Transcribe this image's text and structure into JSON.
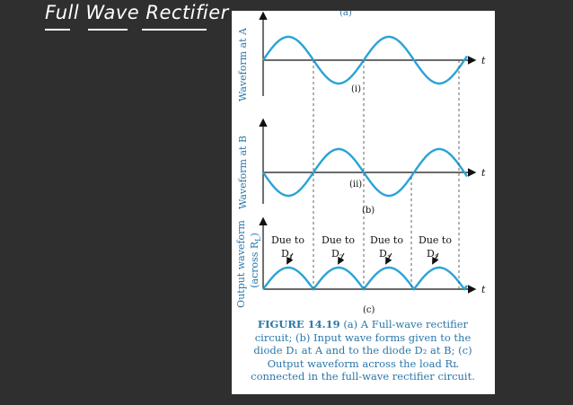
{
  "handwritten_title": "Full Wave Rectifier",
  "figure": {
    "label_a": "(a)",
    "waveform_a_label": "Waveform at A",
    "waveform_b_label": "Waveform at B",
    "output_label_line1": "Output waveform",
    "output_label_line2": "(across R",
    "output_label_sub": "L",
    "output_label_close": ")",
    "axis_t": "t",
    "label_i": "(i)",
    "label_ii": "(ii)",
    "label_b": "(b)",
    "label_c": "(c)",
    "due_to": [
      "Due to",
      "Due to",
      "Due to",
      "Due to"
    ],
    "diode": [
      "D",
      "D",
      "D",
      "D"
    ],
    "diode_sub": [
      "1",
      "2",
      "1",
      "2"
    ]
  },
  "caption": {
    "bold": "FIGURE 14.19",
    "text": "(a) A Full-wave rectifier circuit; (b) Input wave forms given to the diode D₁ at A and to the diode D₂ at B; (c) Output waveform across the load Rʟ connected in the full-wave rectifier circuit."
  },
  "colors": {
    "wave": "#2aa3d6",
    "text": "#2b77a8",
    "axis": "#111111",
    "background": "#2f2f30"
  }
}
